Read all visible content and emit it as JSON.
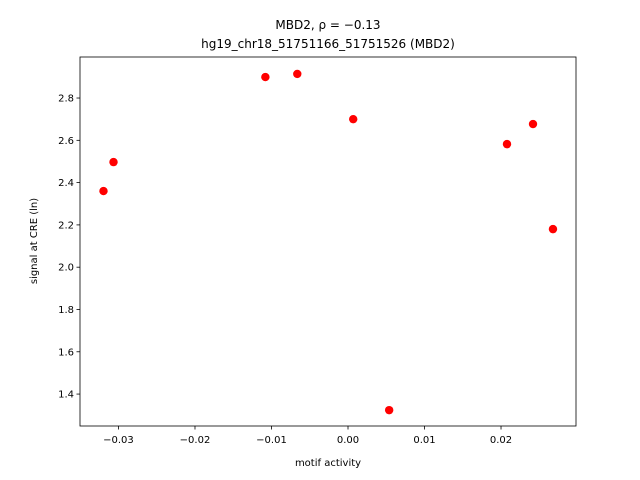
{
  "chart_data": {
    "type": "scatter",
    "title": [
      "MBD2, ρ = −0.13",
      "hg19_chr18_51751166_51751526 (MBD2)"
    ],
    "xlabel": "motif activity",
    "ylabel": "signal at CRE (ln)",
    "color": "#ff0000",
    "x": [
      -0.03196,
      -0.03065,
      -0.0108,
      -0.00663,
      0.00068,
      0.00538,
      0.02078,
      0.02418,
      0.02679
    ],
    "values": [
      2.36,
      2.497,
      2.899,
      2.914,
      2.7,
      1.324,
      2.582,
      2.677,
      2.18
    ],
    "xlim": [
      -0.03503,
      0.0298
    ],
    "ylim": [
      1.249,
      2.994
    ],
    "xticks": [
      {
        "value": -0.03,
        "label": "−0.03"
      },
      {
        "value": -0.02,
        "label": "−0.02"
      },
      {
        "value": -0.01,
        "label": "−0.01"
      },
      {
        "value": 0,
        "label": "0.00"
      },
      0.01,
      0.02
    ],
    "yticks": [
      1.4,
      1.6,
      1.8,
      {
        "value": 2,
        "label": "2.0"
      },
      2.2,
      2.4,
      2.6,
      2.8
    ]
  }
}
